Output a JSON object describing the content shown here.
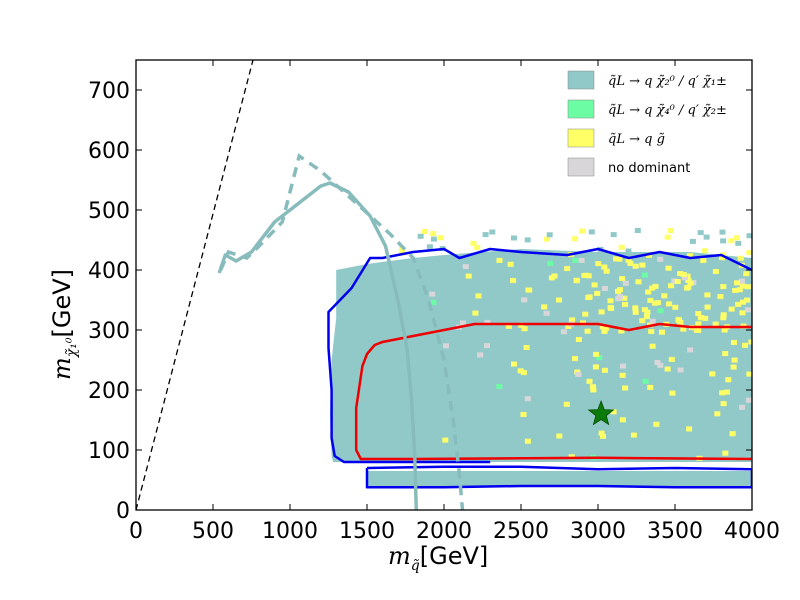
{
  "chart_data": {
    "type": "scatter",
    "title": "",
    "xlabel": {
      "symbol": "m",
      "sub": "q̃",
      "unit": "[GeV]"
    },
    "ylabel": {
      "symbol": "m",
      "sub": "χ̃₁⁰",
      "unit": "[GeV]"
    },
    "xlim": [
      0,
      4000
    ],
    "ylim": [
      0,
      750
    ],
    "xticks": [
      0,
      500,
      1000,
      1500,
      2000,
      2500,
      3000,
      3500,
      4000
    ],
    "yticks": [
      0,
      100,
      200,
      300,
      400,
      500,
      600,
      700
    ],
    "grid": false,
    "legend_position": "top-right",
    "colors": {
      "chargino_neutralino2": "#91c9c9",
      "neutralino4_chargino2": "#6cfca3",
      "gluino": "#ffff66",
      "no_dominant": "#d9d6d9",
      "blue_contour": "#0000ee",
      "red_contour": "#ee0000",
      "limit_curve": "#88bcbc",
      "star": "#0a7a0a"
    },
    "legend": [
      {
        "key": "chargino_neutralino2",
        "label": "q̃L → q χ̃₂⁰ / q′ χ̃₁±"
      },
      {
        "key": "neutralino4_chargino2",
        "label": "q̃L → q χ̃₄⁰ / q′ χ̃₂±"
      },
      {
        "key": "gluino",
        "label": "q̃L → q g̃"
      },
      {
        "key": "no_dominant",
        "label": "no dominant"
      }
    ],
    "regions": {
      "dominant_region": [
        [
          1500,
          410
        ],
        [
          1300,
          400
        ],
        [
          1300,
          320
        ],
        [
          1270,
          250
        ],
        [
          1260,
          160
        ],
        [
          1270,
          90
        ],
        [
          1280,
          80
        ],
        [
          4000,
          80
        ],
        [
          4000,
          420
        ],
        [
          3600,
          430
        ],
        [
          3000,
          430
        ],
        [
          2500,
          435
        ],
        [
          2000,
          425
        ],
        [
          1800,
          420
        ]
      ],
      "lower_strip": [
        [
          1500,
          65
        ],
        [
          4000,
          65
        ],
        [
          4000,
          40
        ],
        [
          1500,
          40
        ]
      ]
    },
    "contours": {
      "blue_main": [
        [
          2300,
          80
        ],
        [
          1350,
          80
        ],
        [
          1290,
          90
        ],
        [
          1270,
          120
        ],
        [
          1270,
          200
        ],
        [
          1250,
          270
        ],
        [
          1250,
          330
        ],
        [
          1400,
          370
        ],
        [
          1520,
          420
        ],
        [
          1600,
          420
        ],
        [
          1800,
          430
        ],
        [
          2000,
          435
        ],
        [
          2100,
          420
        ],
        [
          2300,
          435
        ],
        [
          2500,
          430
        ],
        [
          2800,
          425
        ],
        [
          3000,
          435
        ],
        [
          3200,
          420
        ],
        [
          3400,
          430
        ],
        [
          3600,
          420
        ],
        [
          3800,
          425
        ],
        [
          4000,
          400
        ]
      ],
      "blue_strip": [
        [
          1500,
          70
        ],
        [
          2000,
          72
        ],
        [
          2500,
          72
        ],
        [
          3000,
          68
        ],
        [
          3500,
          70
        ],
        [
          4000,
          68
        ],
        [
          4000,
          38
        ],
        [
          3500,
          38
        ],
        [
          3000,
          40
        ],
        [
          2500,
          40
        ],
        [
          2000,
          38
        ],
        [
          1500,
          38
        ],
        [
          1500,
          70
        ]
      ],
      "red": [
        [
          4000,
          85
        ],
        [
          3000,
          87
        ],
        [
          1800,
          85
        ],
        [
          1460,
          85
        ],
        [
          1430,
          100
        ],
        [
          1430,
          170
        ],
        [
          1470,
          240
        ],
        [
          1500,
          260
        ],
        [
          1550,
          275
        ],
        [
          1600,
          280
        ],
        [
          1800,
          290
        ],
        [
          2000,
          300
        ],
        [
          2200,
          310
        ],
        [
          2500,
          310
        ],
        [
          2800,
          310
        ],
        [
          3000,
          310
        ],
        [
          3200,
          300
        ],
        [
          3400,
          310
        ],
        [
          3600,
          305
        ],
        [
          3800,
          305
        ],
        [
          4000,
          305
        ]
      ]
    },
    "limit_curves": {
      "solid": [
        [
          540,
          395
        ],
        [
          580,
          425
        ],
        [
          650,
          415
        ],
        [
          750,
          430
        ],
        [
          900,
          480
        ],
        [
          1050,
          510
        ],
        [
          1200,
          540
        ],
        [
          1260,
          545
        ],
        [
          1380,
          530
        ],
        [
          1520,
          490
        ],
        [
          1620,
          440
        ],
        [
          1700,
          350
        ],
        [
          1760,
          270
        ],
        [
          1790,
          180
        ],
        [
          1810,
          90
        ],
        [
          1820,
          0
        ]
      ],
      "dashed": [
        [
          550,
          400
        ],
        [
          600,
          430
        ],
        [
          720,
          420
        ],
        [
          800,
          440
        ],
        [
          950,
          480
        ],
        [
          1060,
          590
        ],
        [
          1200,
          565
        ],
        [
          1350,
          530
        ],
        [
          1500,
          495
        ],
        [
          1650,
          460
        ],
        [
          1800,
          420
        ],
        [
          1900,
          350
        ],
        [
          2000,
          250
        ],
        [
          2060,
          150
        ],
        [
          2100,
          60
        ],
        [
          2120,
          0
        ]
      ],
      "diagonal": [
        [
          0,
          0
        ],
        [
          760,
          750
        ]
      ]
    },
    "benchmark_point": {
      "x": 3020,
      "y": 160,
      "marker": "star"
    }
  }
}
